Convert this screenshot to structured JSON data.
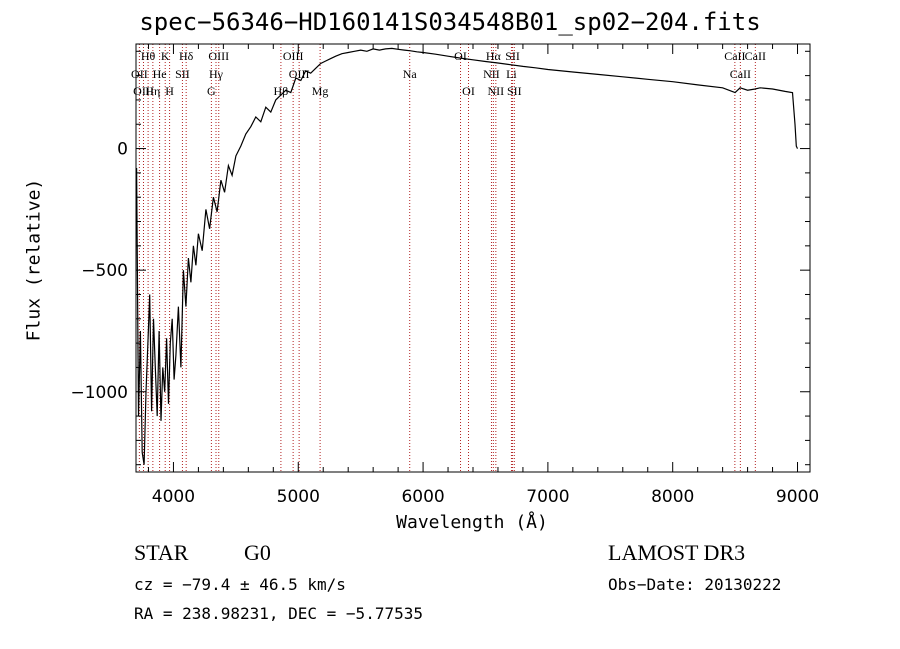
{
  "chart_data": {
    "type": "line",
    "title": "spec−56346−HD160141S034548B01_sp02−204.fits",
    "xlabel": "Wavelength (Å)",
    "ylabel": "Flux (relative)",
    "xlim": [
      3700,
      9100
    ],
    "ylim": [
      -1330,
      430
    ],
    "xticks": [
      4000,
      5000,
      6000,
      7000,
      8000,
      9000
    ],
    "xtick_labels": [
      "4000",
      "5000",
      "6000",
      "7000",
      "8000",
      "9000"
    ],
    "yticks": [
      0,
      -500,
      -1000
    ],
    "ytick_labels": [
      "0",
      "−500",
      "−1000"
    ],
    "series": [
      {
        "name": "spectrum",
        "x": [
          3705,
          3720,
          3735,
          3750,
          3765,
          3780,
          3795,
          3810,
          3825,
          3840,
          3855,
          3870,
          3885,
          3900,
          3915,
          3930,
          3945,
          3960,
          3975,
          3990,
          4005,
          4020,
          4040,
          4060,
          4080,
          4100,
          4120,
          4140,
          4160,
          4180,
          4200,
          4230,
          4260,
          4290,
          4320,
          4350,
          4380,
          4410,
          4440,
          4470,
          4500,
          4540,
          4580,
          4620,
          4660,
          4700,
          4740,
          4780,
          4820,
          4860,
          4900,
          4940,
          4980,
          5020,
          5060,
          5100,
          5140,
          5180,
          5220,
          5260,
          5300,
          5350,
          5400,
          5450,
          5500,
          5550,
          5600,
          5650,
          5700,
          5750,
          5800,
          5850,
          5900,
          5950,
          6000,
          6100,
          6200,
          6300,
          6400,
          6500,
          6600,
          6700,
          6800,
          6900,
          7000,
          7200,
          7400,
          7600,
          7800,
          8000,
          8200,
          8400,
          8500,
          8540,
          8600,
          8660,
          8700,
          8800,
          8900,
          8960,
          8980,
          8990,
          9000
        ],
        "y": [
          -80,
          -1100,
          -750,
          -1250,
          -1300,
          -1000,
          -800,
          -600,
          -1080,
          -700,
          -900,
          -1100,
          -750,
          -1120,
          -900,
          -1000,
          -780,
          -1050,
          -800,
          -700,
          -950,
          -850,
          -650,
          -900,
          -500,
          -650,
          -450,
          -550,
          -400,
          -480,
          -350,
          -420,
          -250,
          -330,
          -200,
          -260,
          -130,
          -180,
          -70,
          -110,
          -30,
          10,
          60,
          90,
          130,
          110,
          170,
          150,
          200,
          220,
          240,
          230,
          290,
          280,
          320,
          310,
          330,
          350,
          360,
          370,
          380,
          390,
          395,
          400,
          405,
          400,
          410,
          405,
          410,
          412,
          408,
          405,
          402,
          398,
          395,
          388,
          380,
          372,
          365,
          358,
          352,
          345,
          338,
          332,
          325,
          315,
          305,
          295,
          285,
          275,
          262,
          250,
          230,
          250,
          240,
          245,
          250,
          245,
          235,
          230,
          100,
          10,
          0
        ]
      }
    ],
    "line_labels": [
      {
        "label": "Hθ",
        "x": 3797
      },
      {
        "label": "K",
        "x": 3934
      },
      {
        "label": "Hδ",
        "x": 4102
      },
      {
        "label": "OIII",
        "x": 4363
      },
      {
        "label": "OIII",
        "x": 4959
      },
      {
        "label": "OI",
        "x": 6300
      },
      {
        "label": "Hα",
        "x": 6563
      },
      {
        "label": "SII",
        "x": 6717
      },
      {
        "label": "CaII",
        "x": 8498
      },
      {
        "label": "OII",
        "x": 3727
      },
      {
        "label": "He",
        "x": 3889
      },
      {
        "label": "SII",
        "x": 4072
      },
      {
        "label": "Hγ",
        "x": 4341
      },
      {
        "label": "OIII",
        "x": 5007
      },
      {
        "label": "Na",
        "x": 5893
      },
      {
        "label": "NII",
        "x": 6548
      },
      {
        "label": "Li",
        "x": 6708
      },
      {
        "label": "CaII",
        "x": 8542
      },
      {
        "label": "OIII",
        "x": 3760
      },
      {
        "label": "Hη",
        "x": 3835
      },
      {
        "label": "H",
        "x": 3969
      },
      {
        "label": "G",
        "x": 4304
      },
      {
        "label": "Hβ",
        "x": 4861
      },
      {
        "label": "Mg",
        "x": 5175
      },
      {
        "label": "OI",
        "x": 6364
      },
      {
        "label": "NII",
        "x": 6583
      },
      {
        "label": "SII",
        "x": 6731
      },
      {
        "label": "CaII",
        "x": 8662
      }
    ]
  },
  "info": {
    "class": "STAR",
    "subclass": "G0",
    "survey": "LAMOST DR3",
    "cz": "cz = −79.4 ± 46.5 km/s",
    "obs_date": "Obs−Date: 20130222",
    "coords": "RA = 238.98231, DEC =  −5.77535"
  }
}
